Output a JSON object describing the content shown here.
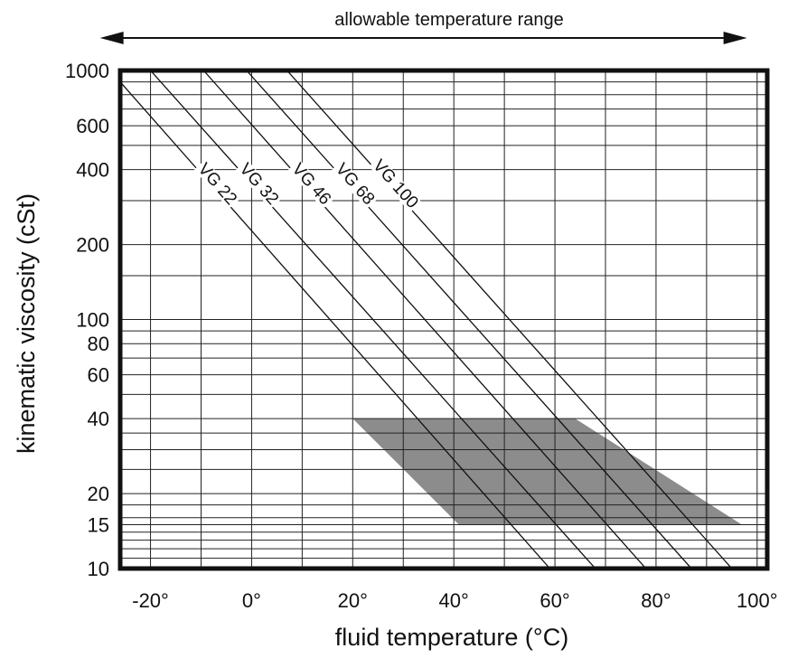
{
  "chart_data": {
    "type": "line",
    "title": "",
    "top_annotation": "allowable temperature range",
    "xlabel": "fluid temperature (°C)",
    "ylabel": "kinematic viscosity (cSt)",
    "x_scale": "linear",
    "y_scale": "log",
    "xlim": [
      -26,
      102
    ],
    "ylim": [
      10,
      1000
    ],
    "grid": true,
    "legend": "inline",
    "x_ticks": [
      {
        "value": -20,
        "label": "-20°"
      },
      {
        "value": 0,
        "label": "0°"
      },
      {
        "value": 20,
        "label": "20°"
      },
      {
        "value": 40,
        "label": "40°"
      },
      {
        "value": 60,
        "label": "60°"
      },
      {
        "value": 80,
        "label": "80°"
      },
      {
        "value": 100,
        "label": "100°"
      }
    ],
    "y_ticks": [
      {
        "value": 10,
        "label": "10"
      },
      {
        "value": 15,
        "label": "15"
      },
      {
        "value": 20,
        "label": "20"
      },
      {
        "value": 40,
        "label": "40"
      },
      {
        "value": 60,
        "label": "60"
      },
      {
        "value": 80,
        "label": "80"
      },
      {
        "value": 100,
        "label": "100"
      },
      {
        "value": 200,
        "label": "200"
      },
      {
        "value": 400,
        "label": "400"
      },
      {
        "value": 600,
        "label": "600"
      },
      {
        "value": 1000,
        "label": "1000"
      }
    ],
    "x_gridlines": [
      -20,
      -10,
      0,
      10,
      20,
      30,
      40,
      50,
      60,
      70,
      80,
      90,
      100
    ],
    "y_gridlines": [
      10,
      11,
      12,
      13,
      14,
      15,
      16,
      18,
      20,
      25,
      30,
      35,
      40,
      50,
      60,
      70,
      80,
      90,
      100,
      150,
      200,
      300,
      400,
      500,
      600,
      700,
      800,
      900,
      1000
    ],
    "series": [
      {
        "name": "VG 22",
        "points": [
          [
            -28,
            1000
          ],
          [
            59,
            10
          ]
        ]
      },
      {
        "name": "VG 32",
        "points": [
          [
            -20,
            1000
          ],
          [
            68,
            10
          ]
        ]
      },
      {
        "name": "VG 46",
        "points": [
          [
            -9.5,
            1000
          ],
          [
            78,
            10
          ]
        ]
      },
      {
        "name": "VG 68",
        "points": [
          [
            -1,
            1000
          ],
          [
            87,
            10
          ]
        ]
      },
      {
        "name": "VG 100",
        "points": [
          [
            7,
            1000
          ],
          [
            95,
            10
          ]
        ]
      }
    ],
    "shaded_region": {
      "color": "#8c8c8c",
      "polygon": [
        [
          20,
          40
        ],
        [
          64,
          40
        ],
        [
          97,
          15
        ],
        [
          41,
          15
        ]
      ]
    },
    "arrow_range": [
      -30,
      98
    ],
    "colors": {
      "line": "#111111",
      "grid": "#222222",
      "frame": "#111111",
      "fill": "#8c8c8c"
    }
  }
}
